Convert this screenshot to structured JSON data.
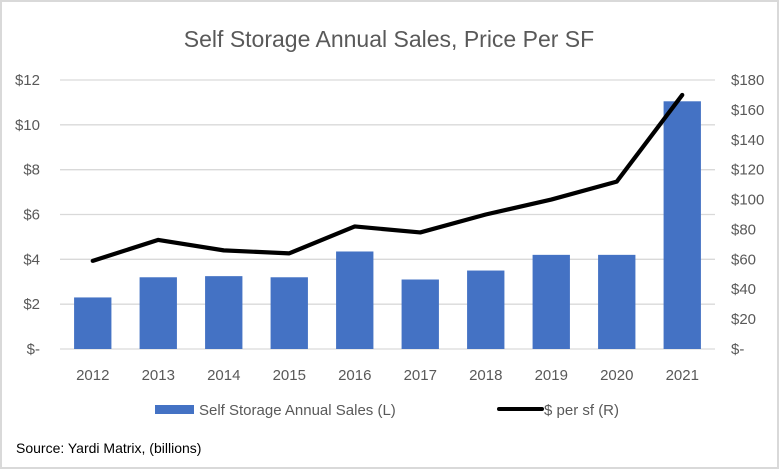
{
  "chart_data": {
    "type": "bar",
    "title": "Self Storage Annual Sales, Price Per SF",
    "categories": [
      "2012",
      "2013",
      "2014",
      "2015",
      "2016",
      "2017",
      "2018",
      "2019",
      "2020",
      "2021"
    ],
    "series": [
      {
        "name": "Self Storage Annual Sales (L)",
        "type": "bar",
        "axis": "left",
        "color": "#4472c4",
        "values": [
          2.3,
          3.2,
          3.25,
          3.2,
          4.35,
          3.1,
          3.5,
          4.2,
          4.2,
          11.05
        ]
      },
      {
        "name": "$ per sf (R)",
        "type": "line",
        "axis": "right",
        "color": "#000000",
        "values": [
          59,
          73,
          66,
          64,
          82,
          78,
          90,
          100,
          112,
          170
        ]
      }
    ],
    "left_axis": {
      "ylim": [
        0,
        12
      ],
      "ticks": [
        0,
        2,
        4,
        6,
        8,
        10,
        12
      ],
      "tick_labels": [
        "$-",
        "$2",
        "$4",
        "$6",
        "$8",
        "$10",
        "$12"
      ]
    },
    "right_axis": {
      "ylim": [
        0,
        180
      ],
      "ticks": [
        0,
        20,
        40,
        60,
        80,
        100,
        120,
        140,
        160,
        180
      ],
      "tick_labels": [
        "$-",
        "$20",
        "$40",
        "$60",
        "$80",
        "$100",
        "$120",
        "$140",
        "$160",
        "$180"
      ]
    },
    "xlabel": "",
    "ylabel": "",
    "grid": true,
    "legend_position": "bottom",
    "source": "Source: Yardi Matrix, (billions)"
  }
}
